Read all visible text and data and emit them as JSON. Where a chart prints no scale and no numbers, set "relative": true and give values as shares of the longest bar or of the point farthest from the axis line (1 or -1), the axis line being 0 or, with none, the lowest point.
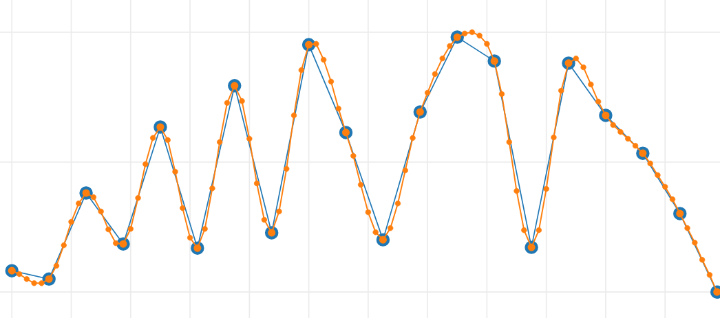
{
  "chart_data": {
    "type": "line",
    "relative": true,
    "grid": true,
    "marker": "circle",
    "categories": [
      null,
      null,
      null,
      null,
      null,
      null,
      null,
      null,
      null,
      null,
      null,
      null,
      null,
      null,
      null,
      null,
      null,
      null,
      null,
      null,
      null,
      null,
      null,
      null,
      null,
      null,
      null,
      null,
      null,
      null,
      null,
      null,
      null,
      null,
      null,
      null,
      null,
      null,
      null,
      null,
      null,
      null,
      null,
      null,
      null,
      null,
      null,
      null,
      null,
      null,
      null,
      null,
      null,
      null,
      null,
      null,
      null,
      null,
      null,
      null,
      null,
      null,
      null,
      null,
      null,
      null,
      null,
      null,
      null,
      null,
      null,
      null,
      null,
      null,
      null,
      null,
      null,
      null,
      null,
      null,
      null,
      null,
      null,
      null,
      null,
      null,
      null,
      null,
      null,
      null,
      null,
      null,
      null,
      null,
      null,
      null
    ],
    "series": [
      {
        "color": "#1f77b4",
        "values": [
          0.082,
          null,
          null,
          null,
          null,
          0.05,
          null,
          null,
          null,
          null,
          0.381,
          null,
          null,
          null,
          null,
          0.185,
          null,
          null,
          null,
          null,
          0.635,
          null,
          null,
          null,
          null,
          0.169,
          null,
          null,
          null,
          null,
          0.794,
          null,
          null,
          null,
          null,
          0.228,
          null,
          null,
          null,
          null,
          0.952,
          null,
          null,
          null,
          null,
          0.614,
          null,
          null,
          null,
          null,
          0.201,
          null,
          null,
          null,
          null,
          0.693,
          null,
          null,
          null,
          null,
          0.981,
          null,
          null,
          null,
          null,
          0.889,
          null,
          null,
          null,
          null,
          0.172,
          null,
          null,
          null,
          null,
          0.881,
          null,
          null,
          null,
          null,
          0.68,
          null,
          null,
          null,
          null,
          0.534,
          null,
          null,
          null,
          null,
          0.302,
          null,
          null,
          null,
          null,
          0
        ]
      },
      {
        "color": "#ff7f0e",
        "values": [
          0.082,
          0.069,
          0.05,
          0.034,
          0.034,
          0.05,
          0.101,
          0.18,
          0.27,
          0.341,
          0.381,
          0.365,
          0.31,
          0.241,
          0.188,
          0.185,
          0.243,
          0.362,
          0.492,
          0.593,
          0.635,
          0.585,
          0.463,
          0.323,
          0.209,
          0.169,
          0.243,
          0.399,
          0.577,
          0.728,
          0.794,
          0.735,
          0.59,
          0.418,
          0.278,
          0.228,
          0.31,
          0.474,
          0.68,
          0.854,
          0.952,
          0.955,
          0.894,
          0.81,
          0.706,
          0.614,
          0.524,
          0.413,
          0.307,
          0.23,
          0.201,
          0.246,
          0.341,
          0.468,
          0.593,
          0.693,
          0.767,
          0.839,
          0.899,
          0.947,
          0.981,
          0.995,
          1,
          0.987,
          0.955,
          0.889,
          0.762,
          0.577,
          0.389,
          0.238,
          0.172,
          0.238,
          0.397,
          0.595,
          0.775,
          0.881,
          0.899,
          0.865,
          0.799,
          0.733,
          0.68,
          0.643,
          0.616,
          0.59,
          0.563,
          0.534,
          0.495,
          0.45,
          0.405,
          0.357,
          0.302,
          0.246,
          0.19,
          0.124,
          0.066,
          0
        ]
      }
    ]
  }
}
